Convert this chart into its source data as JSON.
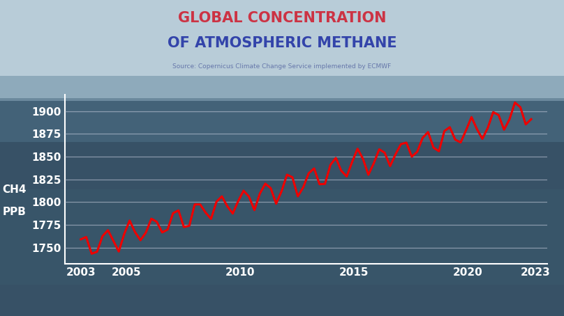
{
  "title_line1": "GLOBAL CONCENTRATION",
  "title_line2": "OF ATMOSPHERIC METHANE",
  "source": "Source: Copernicus Climate Change Service implemented by ECMWF",
  "ylabel_line1": "CH4",
  "ylabel_line2": "PPB",
  "yticks": [
    1750,
    1775,
    1800,
    1825,
    1850,
    1875,
    1900
  ],
  "ylim": [
    1732,
    1918
  ],
  "xlim": [
    2002.3,
    2023.5
  ],
  "xticks": [
    2003,
    2005,
    2010,
    2015,
    2020,
    2023
  ],
  "line_color": "#ee0000",
  "line_width": 2.2,
  "grid_color": "#c0c8d8",
  "axis_color": "#ffffff",
  "tick_color": "#ffffff",
  "title_color1": "#cc3344",
  "title_color2": "#3344aa",
  "source_color": "#6677aa",
  "bg_top_color": "#c8d4e0",
  "bg_bottom_color": "#3a5068",
  "bg_mid_color": "#4a6880"
}
